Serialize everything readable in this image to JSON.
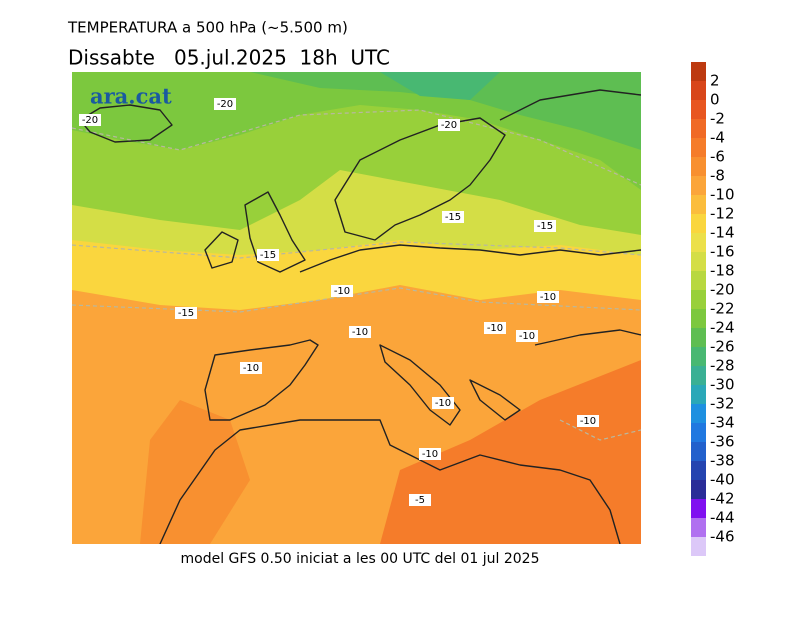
{
  "header": {
    "title": "TEMPERATURA a 500 hPa (~5.500 m)",
    "date": "Dissabte   05.jul.2025  18h  UTC"
  },
  "logo": "ara.cat",
  "footer": "model GFS 0.50 iniciat a les 00 UTC del 01 jul 2025",
  "contour_labels": [
    -20,
    -20,
    -20,
    -15,
    -15,
    -15,
    -15,
    -10,
    -10,
    -10,
    -10,
    -10,
    -10,
    -10,
    -10,
    -10,
    -5
  ],
  "colorbar": {
    "levels": [
      2,
      0,
      -2,
      -4,
      -6,
      -8,
      -10,
      -12,
      -14,
      -16,
      -18,
      -20,
      -22,
      -24,
      -26,
      -28,
      -30,
      -32,
      -34,
      -36,
      -38,
      -40,
      -42,
      -44,
      -46
    ],
    "colors": [
      "#bd3a10",
      "#d8461a",
      "#e85620",
      "#f06a26",
      "#f57c2a",
      "#f89030",
      "#fba53a",
      "#fbbd3c",
      "#fad63e",
      "#ece04a",
      "#d4de46",
      "#b8d840",
      "#98d03a",
      "#7cc83e",
      "#5ebe52",
      "#48b872",
      "#3ab094",
      "#2aa8b8",
      "#1e90e0",
      "#2078e0",
      "#2260cc",
      "#2444b0",
      "#2a2c98",
      "#8010f0",
      "#b070f0",
      "#dcc8f8"
    ]
  }
}
